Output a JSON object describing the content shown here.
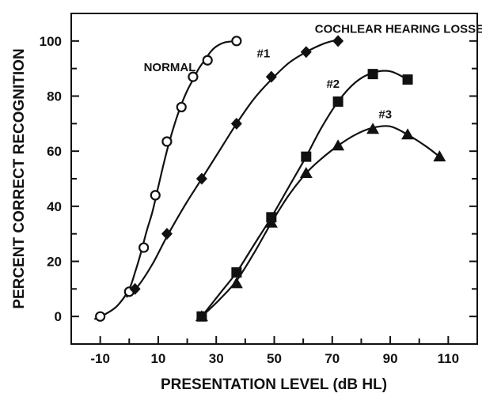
{
  "chart_data": {
    "type": "scatter",
    "xlabel": "PRESENTATION LEVEL (dB HL)",
    "ylabel": "PERCENT CORRECT RECOGNITION",
    "xlim": [
      -20,
      120
    ],
    "ylim": [
      -10,
      110
    ],
    "xticks": [
      -10,
      10,
      30,
      50,
      70,
      90,
      110
    ],
    "yticks": [
      0,
      20,
      40,
      60,
      80,
      100
    ],
    "grid": false,
    "annotations": [
      {
        "text": "COCHLEAR HEARING LOSSES",
        "x": 64,
        "y": 103
      },
      {
        "text": "NORMAL",
        "x": 5,
        "y": 89
      },
      {
        "text": "#1",
        "x": 44,
        "y": 94
      },
      {
        "text": "#2",
        "x": 68,
        "y": 83
      },
      {
        "text": "#3",
        "x": 86,
        "y": 72
      }
    ],
    "series": [
      {
        "name": "NORMAL",
        "marker": "circle-open",
        "points": [
          [
            -10,
            0
          ],
          [
            0,
            9
          ],
          [
            5,
            25
          ],
          [
            9,
            44
          ],
          [
            13,
            63.5
          ],
          [
            18,
            76
          ],
          [
            22,
            87
          ],
          [
            27,
            93
          ],
          [
            37,
            100
          ]
        ],
        "curve": [
          [
            -12,
            -1
          ],
          [
            -8,
            1
          ],
          [
            -4,
            4
          ],
          [
            0,
            10
          ],
          [
            2,
            16
          ],
          [
            4,
            23
          ],
          [
            6,
            31
          ],
          [
            8,
            38
          ],
          [
            10,
            47
          ],
          [
            12,
            56
          ],
          [
            14,
            64
          ],
          [
            16,
            71
          ],
          [
            18,
            77
          ],
          [
            20,
            82
          ],
          [
            22,
            86
          ],
          [
            24,
            90
          ],
          [
            26,
            93
          ],
          [
            28,
            96
          ],
          [
            30,
            98
          ],
          [
            33,
            99.5
          ],
          [
            37,
            100
          ]
        ]
      },
      {
        "name": "#1",
        "marker": "diamond-filled",
        "points": [
          [
            2,
            10
          ],
          [
            13,
            30
          ],
          [
            25,
            50
          ],
          [
            37,
            70
          ],
          [
            49,
            87
          ],
          [
            61,
            96
          ],
          [
            72,
            100
          ]
        ],
        "curve": [
          [
            -1,
            7
          ],
          [
            3,
            11
          ],
          [
            8,
            19
          ],
          [
            13,
            29
          ],
          [
            19,
            40
          ],
          [
            25,
            50
          ],
          [
            31,
            60
          ],
          [
            37,
            70
          ],
          [
            43,
            79
          ],
          [
            49,
            86
          ],
          [
            55,
            92
          ],
          [
            61,
            96
          ],
          [
            67,
            99
          ],
          [
            72,
            100.5
          ]
        ]
      },
      {
        "name": "#2",
        "marker": "square-filled",
        "points": [
          [
            25,
            0
          ],
          [
            37,
            16
          ],
          [
            49,
            36
          ],
          [
            61,
            58
          ],
          [
            72,
            78
          ],
          [
            84,
            88
          ],
          [
            96,
            86
          ]
        ],
        "curve": [
          [
            25,
            0
          ],
          [
            31,
            8
          ],
          [
            37,
            16
          ],
          [
            43,
            26
          ],
          [
            49,
            36
          ],
          [
            55,
            47
          ],
          [
            61,
            58
          ],
          [
            66,
            68
          ],
          [
            72,
            78
          ],
          [
            78,
            85
          ],
          [
            84,
            88.5
          ],
          [
            90,
            89
          ],
          [
            96,
            86
          ]
        ]
      },
      {
        "name": "#3",
        "marker": "triangle-filled",
        "points": [
          [
            25,
            0
          ],
          [
            37,
            12
          ],
          [
            49,
            34
          ],
          [
            61,
            52
          ],
          [
            72,
            62
          ],
          [
            84,
            68
          ],
          [
            96,
            66
          ],
          [
            107,
            58
          ]
        ],
        "curve": [
          [
            25,
            0
          ],
          [
            31,
            6
          ],
          [
            37,
            13
          ],
          [
            43,
            23
          ],
          [
            49,
            34
          ],
          [
            55,
            44
          ],
          [
            61,
            52
          ],
          [
            66,
            57
          ],
          [
            72,
            62
          ],
          [
            78,
            66
          ],
          [
            84,
            68.5
          ],
          [
            90,
            69
          ],
          [
            96,
            66
          ],
          [
            102,
            62
          ],
          [
            107,
            58
          ]
        ]
      }
    ]
  }
}
